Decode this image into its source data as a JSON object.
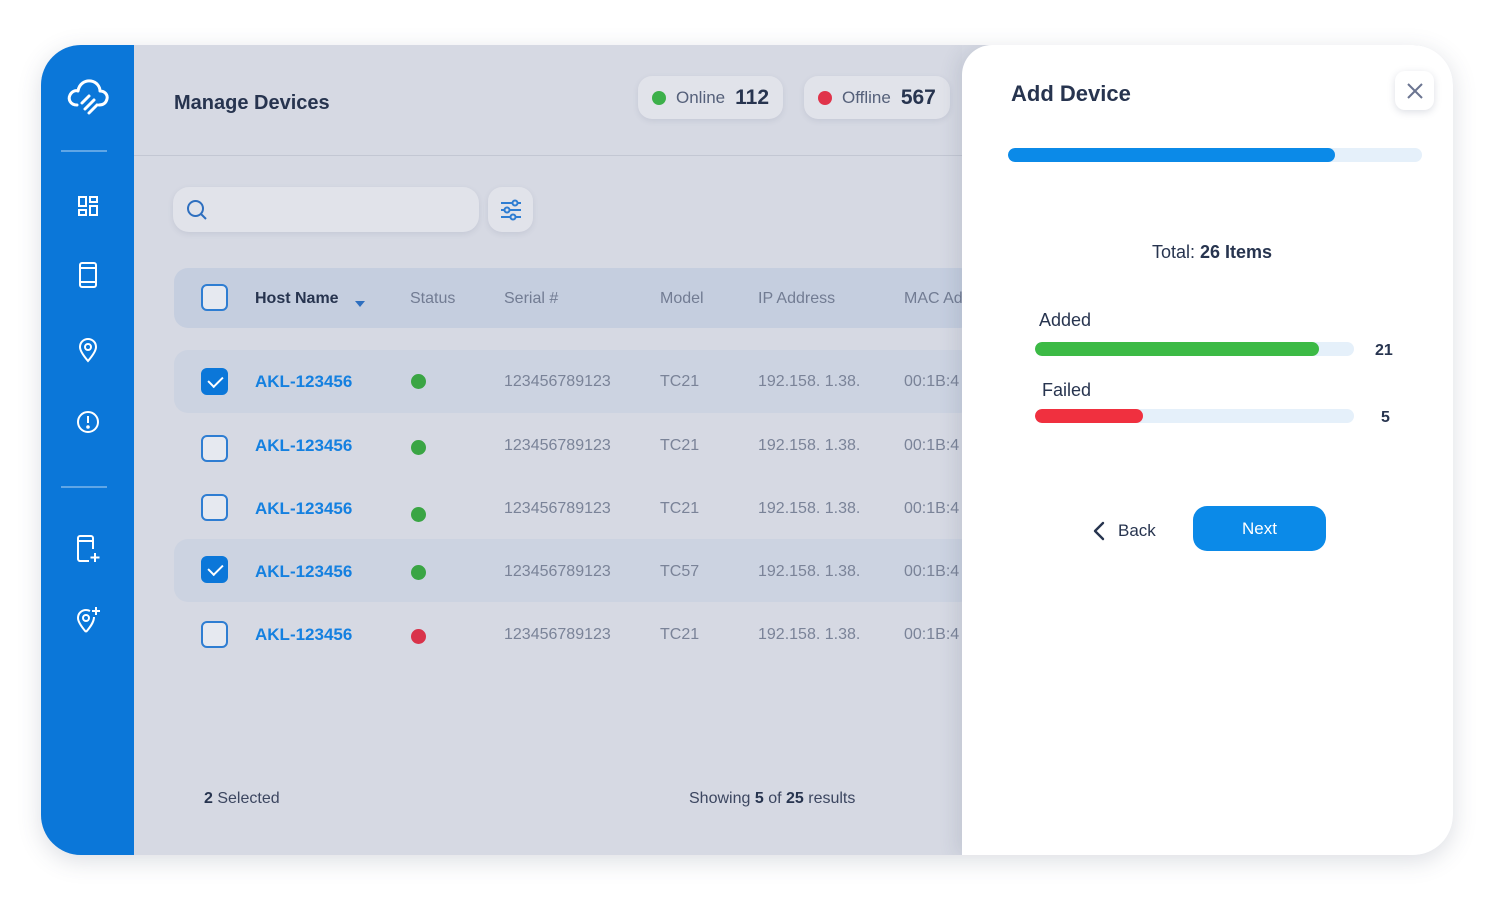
{
  "header": {
    "title": "Manage Devices"
  },
  "stats": {
    "online": {
      "label": "Online",
      "value": "112",
      "color": "#3cb04a"
    },
    "offline": {
      "label": "Offline",
      "value": "567",
      "color": "#e0334a"
    }
  },
  "sidebar": {
    "items": [
      {
        "name": "dashboard-icon"
      },
      {
        "name": "device-icon"
      },
      {
        "name": "location-icon"
      },
      {
        "name": "alert-icon"
      },
      {
        "name": "add-device-icon"
      },
      {
        "name": "add-location-icon"
      }
    ]
  },
  "search": {
    "placeholder": ""
  },
  "table": {
    "columns": [
      "Host Name",
      "Status",
      "Serial #",
      "Model",
      "IP Address",
      "MAC Ad"
    ],
    "rows": [
      {
        "host": "AKL-123456",
        "status": "online",
        "serial": "123456789123",
        "model": "TC21",
        "ip": "192.158. 1.38.",
        "mac": "00:1B:4",
        "checked": true
      },
      {
        "host": "AKL-123456",
        "status": "online",
        "serial": "123456789123",
        "model": "TC21",
        "ip": "192.158. 1.38.",
        "mac": "00:1B:4",
        "checked": false
      },
      {
        "host": "AKL-123456",
        "status": "online",
        "serial": "123456789123",
        "model": "TC21",
        "ip": "192.158. 1.38.",
        "mac": "00:1B:4",
        "checked": false
      },
      {
        "host": "AKL-123456",
        "status": "online",
        "serial": "123456789123",
        "model": "TC57",
        "ip": "192.158. 1.38.",
        "mac": "00:1B:4",
        "checked": true
      },
      {
        "host": "AKL-123456",
        "status": "offline",
        "serial": "123456789123",
        "model": "TC21",
        "ip": "192.158. 1.38.",
        "mac": "00:1B:4",
        "checked": false
      }
    ]
  },
  "footer": {
    "selected_count": "2",
    "selected_label": "Selected",
    "showing_prefix": "Showing",
    "showing_count": "5",
    "showing_of": "of",
    "showing_total": "25",
    "showing_suffix": "results"
  },
  "panel": {
    "title": "Add Device",
    "progress": 0.79,
    "total_label": "Total:",
    "total_value": "26 Items",
    "added": {
      "label": "Added",
      "value": "21",
      "fraction": 0.89,
      "color": "#3cba45"
    },
    "failed": {
      "label": "Failed",
      "value": "5",
      "fraction": 0.34,
      "color": "#f0303f"
    },
    "back_label": "Back",
    "next_label": "Next"
  }
}
